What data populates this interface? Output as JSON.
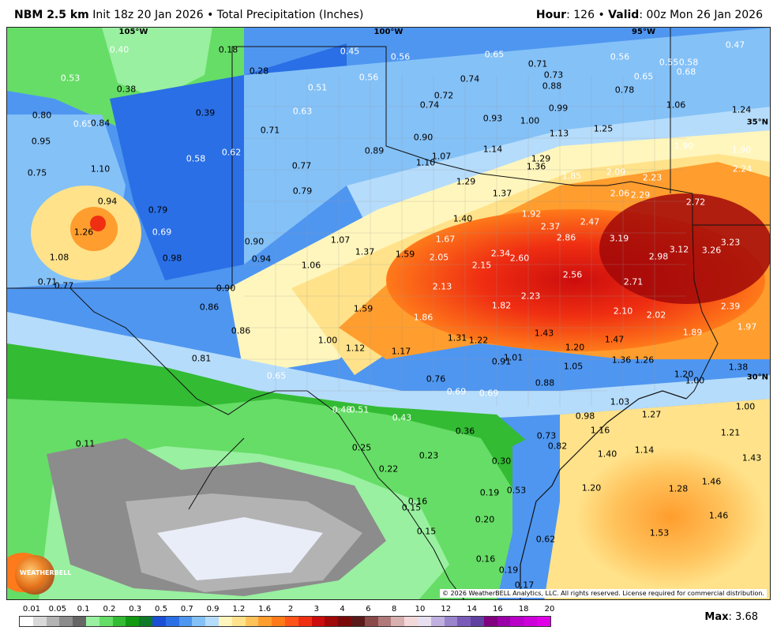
{
  "header": {
    "model": "NBM 2.5 km",
    "init": "Init 18z 20 Jan 2026",
    "sep": "•",
    "product": "Total Precipitation (Inches)",
    "hour_label": "Hour",
    "hour_value": "126",
    "valid_label": "Valid",
    "valid_value": "00z Mon 26 Jan 2026"
  },
  "grid": {
    "lon_labels": [
      "105°W",
      "100°W",
      "95°W"
    ],
    "lat_labels": [
      "35°N",
      "30°N"
    ]
  },
  "value_labels": [
    "0.40",
    "0.18",
    "0.45",
    "0.56",
    "0.65",
    "0.71",
    "0.56",
    "0.55",
    "0.58",
    "0.47",
    "0.53",
    "0.38",
    "0.28",
    "0.51",
    "0.56",
    "0.74",
    "0.73",
    "0.65",
    "0.68",
    "0.72",
    "0.88",
    "0.78",
    "0.80",
    "0.39",
    "0.63",
    "0.74",
    "0.99",
    "1.06",
    "1.24",
    "0.65",
    "0.84",
    "0.93",
    "1.00",
    "0.95",
    "0.71",
    "0.90",
    "1.13",
    "1.25",
    "0.62",
    "0.89",
    "1.14",
    "1.90",
    "1.90",
    "0.58",
    "1.07",
    "1.29",
    "0.75",
    "1.10",
    "0.77",
    "1.10",
    "1.36",
    "2.24",
    "1.85",
    "2.09",
    "2.23",
    "1.29",
    "0.79",
    "1.37",
    "2.06",
    "2.29",
    "2.72",
    "0.94",
    "0.79",
    "1.92",
    "1.40",
    "2.37",
    "2.47",
    "1.26",
    "0.69",
    "1.67",
    "2.86",
    "3.19",
    "3.23",
    "0.90",
    "1.07",
    "1.37",
    "1.59",
    "0.98",
    "0.94",
    "3.12",
    "3.26",
    "2.05",
    "2.34",
    "1.08",
    "2.98",
    "1.06",
    "2.60",
    "2.15",
    "0.71",
    "0.77",
    "0.90",
    "2.56",
    "2.71",
    "2.13",
    "1.82",
    "2.23",
    "0.86",
    "1.59",
    "2.39",
    "1.86",
    "2.10",
    "2.02",
    "1.97",
    "0.86",
    "1.89",
    "1.43",
    "1.31",
    "1.22",
    "1.47",
    "1.00",
    "1.12",
    "1.17",
    "1.20",
    "0.81",
    "0.91",
    "1.01",
    "1.36",
    "1.26",
    "1.05",
    "1.38",
    "0.65",
    "1.20",
    "0.76",
    "0.88",
    "1.00",
    "0.69",
    "0.69",
    "1.03",
    "1.00",
    "0.48",
    "0.51",
    "0.43",
    "0.98",
    "1.27",
    "1.16",
    "1.21",
    "0.36",
    "0.73",
    "0.11",
    "0.25",
    "0.23",
    "0.82",
    "1.40",
    "1.14",
    "1.43",
    "0.30",
    "0.22",
    "0.53",
    "0.19",
    "1.46",
    "1.20",
    "1.28",
    "0.16",
    "0.15",
    "0.20",
    "1.46",
    "1.53",
    "0.15",
    "0.62",
    "0.16",
    "0.19",
    "0.17"
  ],
  "copyright": "© 2026 WeatherBELL Analytics, LLC. All rights reserved. License required for commercial distribution.",
  "logo_text": "WEATHERBELL",
  "scale": {
    "ticks": [
      "0.01",
      "0.05",
      "0.1",
      "0.2",
      "0.3",
      "0.5",
      "0.7",
      "0.9",
      "1.2",
      "1.6",
      "2",
      "3",
      "4",
      "6",
      "8",
      "10",
      "12",
      "14",
      "16",
      "18",
      "20"
    ],
    "colors": [
      "#ffffff",
      "#d9d9d9",
      "#b3b3b3",
      "#8c8c8c",
      "#666666",
      "#99f0a0",
      "#66dd66",
      "#33bb33",
      "#119911",
      "#0f7a2a",
      "#1a4fd6",
      "#2a6fe6",
      "#4f96f0",
      "#84c1f7",
      "#b5dcfb",
      "#fff6bd",
      "#ffe28a",
      "#ffc35c",
      "#ff9d2e",
      "#ff7a1a",
      "#ff551a",
      "#ef2e12",
      "#cc0d0d",
      "#a10808",
      "#7a0a0a",
      "#5a1a1a",
      "#8a4a4a",
      "#b07a7a",
      "#d8b0b0",
      "#f2d8d8",
      "#e8e0f0",
      "#c0b0e0",
      "#9a84cc",
      "#7a5cb8",
      "#6040a0",
      "#800080",
      "#9a00a8",
      "#b800c8",
      "#cc00d8",
      "#e000e8"
    ]
  },
  "max": {
    "label": "Max",
    "value": "3.68"
  }
}
